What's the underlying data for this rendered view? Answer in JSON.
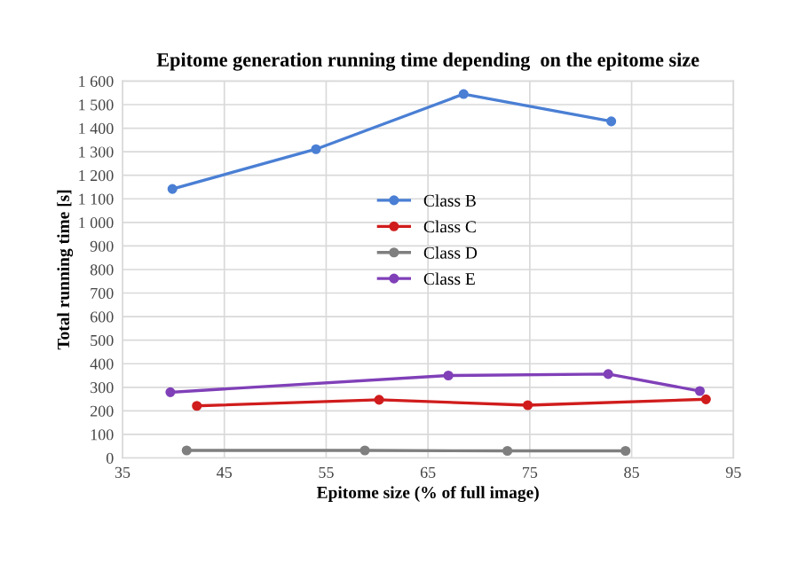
{
  "chart_data": {
    "type": "line",
    "title": "Epitome generation running time depending  on the epitome size",
    "xlabel": "Epitome size (% of full image)",
    "ylabel": "Total running time [s]",
    "series": [
      {
        "name": "Class B",
        "color": "#4a7fd4",
        "x": [
          39.9,
          54.0,
          68.5,
          83.0
        ],
        "values": [
          1142,
          1311,
          1545,
          1429
        ]
      },
      {
        "name": "Class C",
        "color": "#d01c1c",
        "x": [
          42.3,
          60.2,
          74.8,
          92.3
        ],
        "values": [
          221,
          247,
          224,
          249
        ]
      },
      {
        "name": "Class D",
        "color": "#7f7f7f",
        "x": [
          41.3,
          58.8,
          72.8,
          84.4
        ],
        "values": [
          32,
          32,
          30,
          30
        ]
      },
      {
        "name": "Class E",
        "color": "#8040b8",
        "x": [
          39.7,
          67.0,
          82.7,
          91.7
        ],
        "values": [
          279,
          350,
          356,
          284
        ]
      }
    ],
    "xlim": [
      35,
      95
    ],
    "xticks": [
      35,
      45,
      55,
      65,
      75,
      85,
      95
    ],
    "ylim": [
      0,
      1600
    ],
    "yticks": [
      0,
      100,
      200,
      300,
      400,
      500,
      600,
      700,
      800,
      900,
      {
        "value": 1000,
        "label": "1 000"
      },
      {
        "value": 1100,
        "label": "1 100"
      },
      {
        "value": 1200,
        "label": "1 200"
      },
      {
        "value": 1300,
        "label": "1 300"
      },
      {
        "value": 1400,
        "label": "1 400"
      },
      {
        "value": 1500,
        "label": "1 500"
      },
      {
        "value": 1600,
        "label": "1 600"
      }
    ],
    "grid": true,
    "legend": "center",
    "marker": "circle",
    "line_style": "solid"
  }
}
